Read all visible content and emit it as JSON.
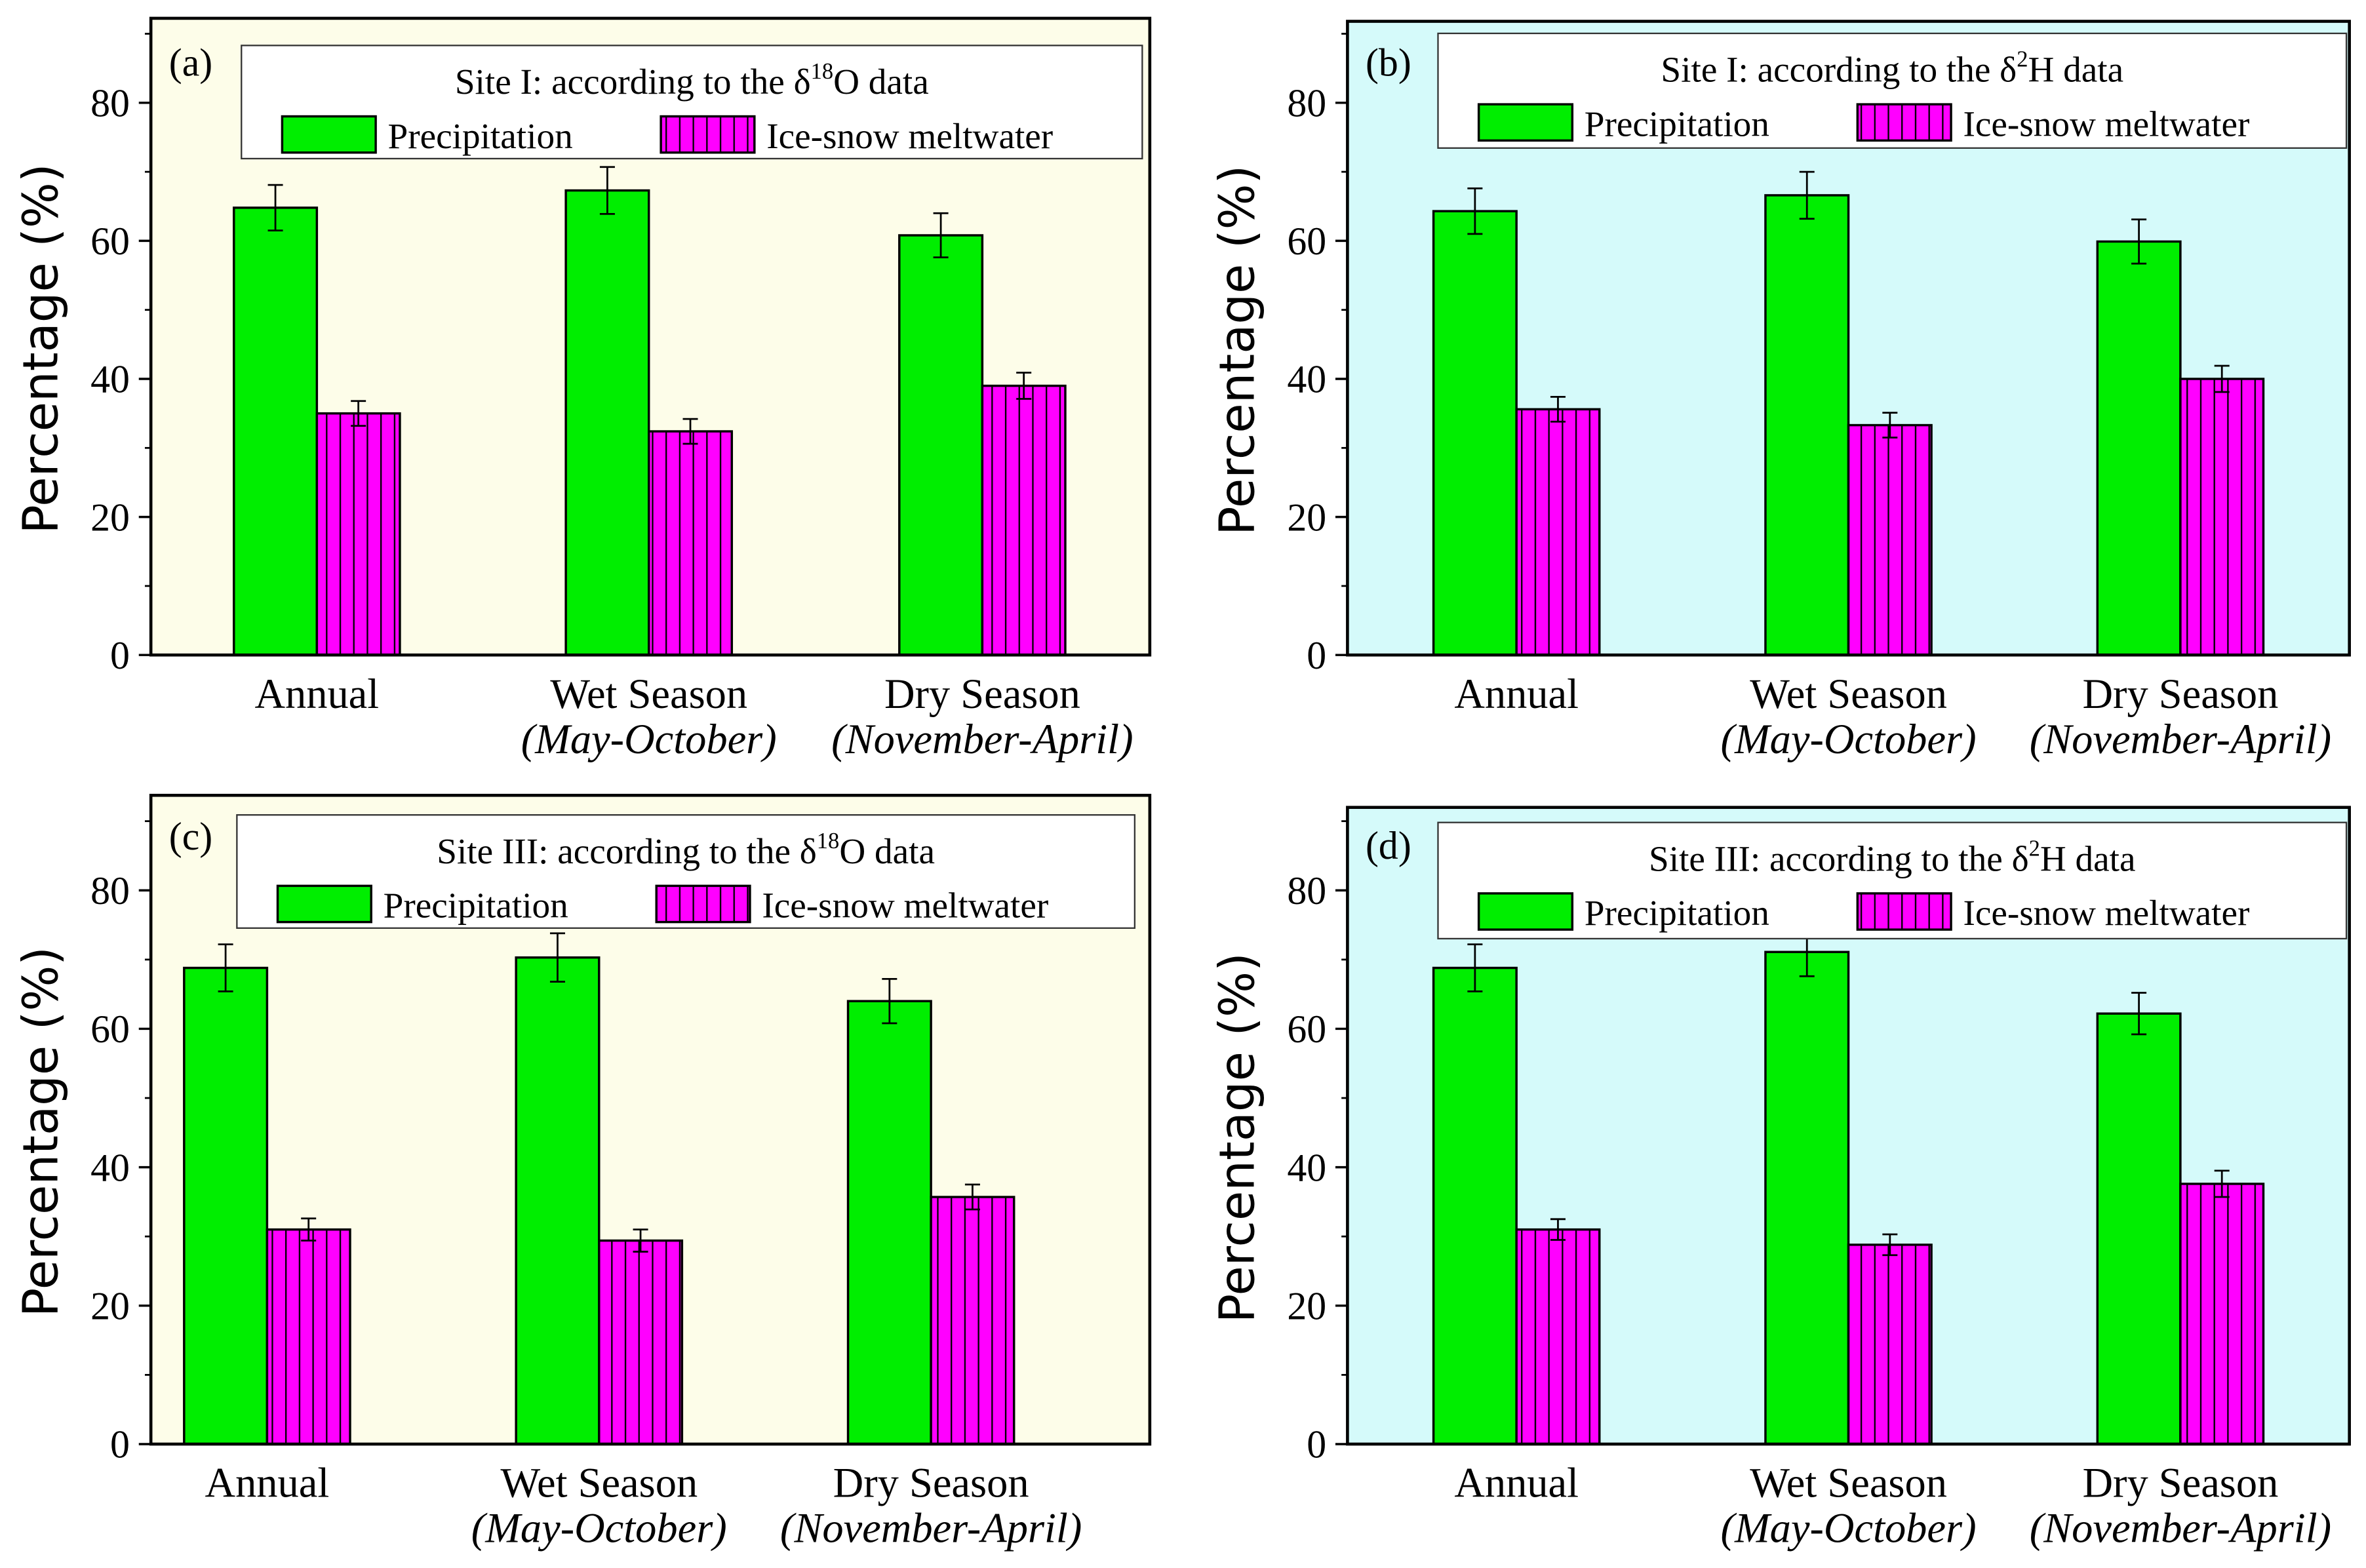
{
  "chart_data": [
    {
      "type": "bar",
      "panel_label": "(a)",
      "title_main": "Site I:  according to the δ",
      "title_sup": "18",
      "title_end": "O data",
      "background": "#fdfde9",
      "categories": [
        "Annual",
        "Wet Season",
        "Dry Season"
      ],
      "category_sublabels": [
        "",
        "(May-October)",
        "(November-April)"
      ],
      "ylabel": "Percentage (%)",
      "ylim": [
        0,
        92
      ],
      "yticks": [
        0,
        20,
        40,
        60,
        80
      ],
      "series": [
        {
          "name": "Precipitation",
          "color": "#00ee00",
          "pattern": "solid",
          "values": [
            64.8,
            67.3,
            60.8
          ],
          "errors": [
            3.3,
            3.4,
            3.2
          ]
        },
        {
          "name": "Ice-snow meltwater",
          "color": "#ff00ff",
          "pattern": "vertical-lines",
          "values": [
            35.0,
            32.4,
            39.0
          ],
          "errors": [
            1.8,
            1.8,
            1.9
          ]
        }
      ]
    },
    {
      "type": "bar",
      "panel_label": "(b)",
      "title_main": "Site I:  according to the δ",
      "title_sup": "2",
      "title_end": "H data",
      "background": "#d5fafa",
      "categories": [
        "Annual",
        "Wet Season",
        "Dry Season"
      ],
      "category_sublabels": [
        "",
        "(May-October)",
        "(November-April)"
      ],
      "ylabel": "Percentage (%)",
      "ylim": [
        0,
        92
      ],
      "yticks": [
        0,
        20,
        40,
        60,
        80
      ],
      "series": [
        {
          "name": "Precipitation",
          "color": "#00ee00",
          "pattern": "solid",
          "values": [
            64.3,
            66.6,
            59.9
          ],
          "errors": [
            3.3,
            3.4,
            3.2
          ]
        },
        {
          "name": "Ice-snow meltwater",
          "color": "#ff00ff",
          "pattern": "vertical-lines",
          "values": [
            35.6,
            33.3,
            40.0
          ],
          "errors": [
            1.8,
            1.8,
            1.9
          ]
        }
      ]
    },
    {
      "type": "bar",
      "panel_label": "(c)",
      "title_main": "Site III:  according to the δ",
      "title_sup": "18",
      "title_end": "O data",
      "background": "#fdfde9",
      "categories": [
        "Annual",
        "Wet Season",
        "Dry Season"
      ],
      "category_sublabels": [
        "",
        "(May-October)",
        "(November-April)"
      ],
      "ylabel": "Percentage (%)",
      "ylim": [
        0,
        92
      ],
      "yticks": [
        0,
        20,
        40,
        60,
        80
      ],
      "series": [
        {
          "name": "Precipitation",
          "color": "#00ee00",
          "pattern": "solid",
          "values": [
            68.8,
            70.3,
            64.0
          ],
          "errors": [
            3.4,
            3.5,
            3.2
          ]
        },
        {
          "name": "Ice-snow meltwater",
          "color": "#ff00ff",
          "pattern": "vertical-lines",
          "values": [
            31.0,
            29.4,
            35.7
          ],
          "errors": [
            1.6,
            1.6,
            1.8
          ]
        }
      ]
    },
    {
      "type": "bar",
      "panel_label": "(d)",
      "title_main": "Site III:  according to the δ",
      "title_sup": "2",
      "title_end": "H data",
      "background": "#d5fafa",
      "categories": [
        "Annual",
        "Wet Season",
        "Dry Season"
      ],
      "category_sublabels": [
        "",
        "(May-October)",
        "(November-April)"
      ],
      "ylabel": "Percentage (%)",
      "ylim": [
        0,
        92
      ],
      "yticks": [
        0,
        20,
        40,
        60,
        80
      ],
      "series": [
        {
          "name": "Precipitation",
          "color": "#00ee00",
          "pattern": "solid",
          "values": [
            68.8,
            71.1,
            62.2
          ],
          "errors": [
            3.4,
            3.5,
            3.0
          ]
        },
        {
          "name": "Ice-snow meltwater",
          "color": "#ff00ff",
          "pattern": "vertical-lines",
          "values": [
            31.0,
            28.8,
            37.6
          ],
          "errors": [
            1.5,
            1.5,
            1.9
          ]
        }
      ]
    }
  ]
}
